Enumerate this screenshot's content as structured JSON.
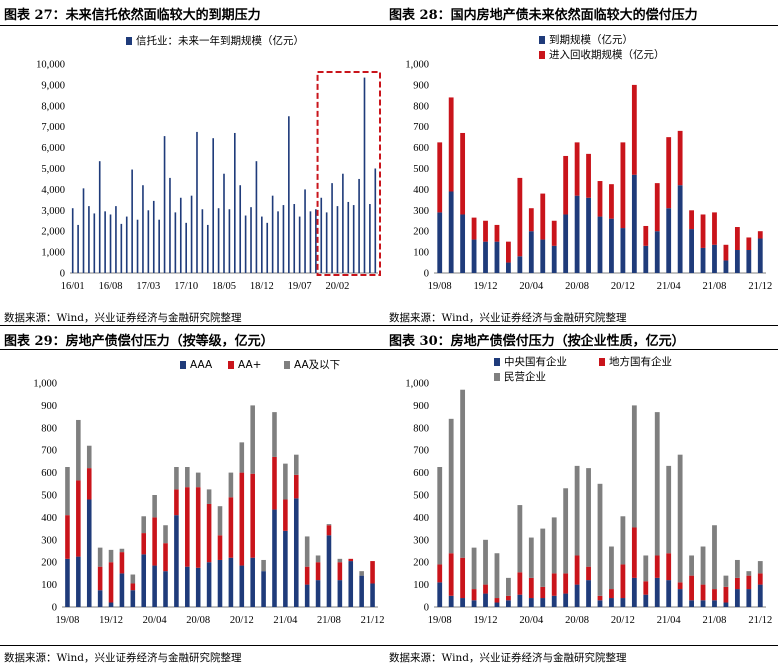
{
  "colors": {
    "navy": "#1f3b7a",
    "red": "#c9141b",
    "gray": "#7f7f7f",
    "highlight": "#c9141b"
  },
  "panels": [
    {
      "title": "图表 27：未来信托依然面临较大的到期压力",
      "source": "数据来源：Wind，兴业证券经济与金融研究院整理"
    },
    {
      "title": "图表 28：国内房地产债未来依然面临较大的偿付压力",
      "source": "数据来源：Wind，兴业证券经济与金融研究院整理"
    },
    {
      "title": "图表 29：房地产债偿付压力（按等级，亿元）",
      "source": "数据来源：Wind，兴业证券经济与金融研究院整理"
    },
    {
      "title": "图表 30：房地产债偿付压力（按企业性质，亿元）",
      "source": "数据来源：Wind，兴业证券经济与金融研究院整理"
    }
  ],
  "chart_data": [
    {
      "type": "bar",
      "ylim": [
        0,
        10000
      ],
      "yticks": [
        "0",
        "1,000",
        "2,000",
        "3,000",
        "4,000",
        "5,000",
        "6,000",
        "7,000",
        "8,000",
        "9,000",
        "10,000"
      ],
      "xticks": [
        {
          "i": 0,
          "label": "16/01"
        },
        {
          "i": 7,
          "label": "16/08"
        },
        {
          "i": 14,
          "label": "17/03"
        },
        {
          "i": 21,
          "label": "17/10"
        },
        {
          "i": 28,
          "label": "18/05"
        },
        {
          "i": 35,
          "label": "18/12"
        },
        {
          "i": 42,
          "label": "19/07"
        },
        {
          "i": 49,
          "label": "20/02"
        }
      ],
      "series": [
        {
          "name": "信托业：未来一年到期规模（亿元）",
          "color": "navy",
          "values": [
            3100,
            2300,
            4050,
            3200,
            2850,
            5350,
            2950,
            2800,
            3200,
            2350,
            2700,
            4950,
            2550,
            4200,
            3000,
            3450,
            2550,
            6550,
            4550,
            2900,
            3600,
            2400,
            3700,
            6750,
            3050,
            2300,
            6450,
            3100,
            4750,
            3050,
            6700,
            4200,
            2750,
            3150,
            5350,
            2700,
            2400,
            3700,
            2950,
            3250,
            7500,
            3300,
            2700,
            4000,
            2950,
            3050,
            3600,
            2900,
            4300,
            3200,
            4750,
            3400,
            3250,
            4500,
            9350,
            3300,
            5000
          ]
        }
      ],
      "highlight_box": {
        "from_index": 46,
        "to_index": 56
      }
    },
    {
      "type": "bar",
      "stacked": true,
      "ylim": [
        0,
        1000
      ],
      "yticks": [
        "0",
        "100",
        "200",
        "300",
        "400",
        "500",
        "600",
        "700",
        "800",
        "900",
        "1,000"
      ],
      "xticks": [
        {
          "i": 0,
          "label": "19/08"
        },
        {
          "i": 4,
          "label": "19/12"
        },
        {
          "i": 8,
          "label": "20/04"
        },
        {
          "i": 12,
          "label": "20/08"
        },
        {
          "i": 16,
          "label": "20/12"
        },
        {
          "i": 20,
          "label": "21/04"
        },
        {
          "i": 24,
          "label": "21/08"
        },
        {
          "i": 28,
          "label": "21/12"
        }
      ],
      "series": [
        {
          "name": "到期规模（亿元）",
          "color": "navy",
          "values": [
            290,
            390,
            280,
            160,
            150,
            150,
            50,
            80,
            200,
            160,
            130,
            280,
            370,
            360,
            270,
            260,
            215,
            470,
            130,
            200,
            310,
            420,
            210,
            120,
            135,
            60,
            110,
            110,
            165
          ]
        },
        {
          "name": "进入回收期规模（亿元）",
          "color": "red",
          "values": [
            335,
            450,
            390,
            105,
            100,
            80,
            100,
            375,
            110,
            220,
            120,
            280,
            255,
            210,
            170,
            165,
            410,
            430,
            95,
            230,
            340,
            260,
            90,
            160,
            155,
            75,
            110,
            60,
            35
          ]
        }
      ]
    },
    {
      "type": "bar",
      "stacked": true,
      "ylim": [
        0,
        1000
      ],
      "yticks": [
        "0",
        "100",
        "200",
        "300",
        "400",
        "500",
        "600",
        "700",
        "800",
        "900",
        "1,000"
      ],
      "xticks": [
        {
          "i": 0,
          "label": "19/08"
        },
        {
          "i": 4,
          "label": "19/12"
        },
        {
          "i": 8,
          "label": "20/04"
        },
        {
          "i": 12,
          "label": "20/08"
        },
        {
          "i": 16,
          "label": "20/12"
        },
        {
          "i": 20,
          "label": "21/04"
        },
        {
          "i": 24,
          "label": "21/08"
        },
        {
          "i": 28,
          "label": "21/12"
        }
      ],
      "series": [
        {
          "name": "AAA",
          "color": "navy",
          "values": [
            215,
            225,
            480,
            75,
            20,
            150,
            75,
            235,
            185,
            160,
            410,
            180,
            175,
            200,
            210,
            220,
            185,
            220,
            160,
            435,
            340,
            485,
            100,
            120,
            320,
            120,
            205,
            140,
            105
          ]
        },
        {
          "name": "AA+",
          "color": "red",
          "values": [
            195,
            340,
            140,
            105,
            180,
            95,
            30,
            95,
            215,
            125,
            115,
            355,
            360,
            260,
            110,
            270,
            415,
            375,
            0,
            235,
            140,
            105,
            80,
            80,
            45,
            80,
            10,
            0,
            100
          ]
        },
        {
          "name": "AA及以下",
          "color": "gray",
          "values": [
            215,
            270,
            100,
            85,
            55,
            15,
            40,
            75,
            100,
            80,
            100,
            90,
            65,
            65,
            130,
            110,
            135,
            305,
            50,
            200,
            160,
            90,
            135,
            30,
            5,
            15,
            0,
            20,
            0
          ]
        }
      ]
    },
    {
      "type": "bar",
      "stacked": true,
      "ylim": [
        0,
        1000
      ],
      "yticks": [
        "0",
        "100",
        "200",
        "300",
        "400",
        "500",
        "600",
        "700",
        "800",
        "900",
        "1,000"
      ],
      "xticks": [
        {
          "i": 0,
          "label": "19/08"
        },
        {
          "i": 4,
          "label": "19/12"
        },
        {
          "i": 8,
          "label": "20/04"
        },
        {
          "i": 12,
          "label": "20/08"
        },
        {
          "i": 16,
          "label": "20/12"
        },
        {
          "i": 20,
          "label": "21/04"
        },
        {
          "i": 24,
          "label": "21/08"
        },
        {
          "i": 28,
          "label": "21/12"
        }
      ],
      "series": [
        {
          "name": "中央国有企业",
          "color": "navy",
          "values": [
            110,
            50,
            40,
            30,
            60,
            20,
            30,
            55,
            40,
            40,
            50,
            60,
            100,
            120,
            30,
            40,
            40,
            130,
            55,
            130,
            120,
            80,
            30,
            30,
            30,
            20,
            80,
            80,
            100
          ]
        },
        {
          "name": "地方国有企业",
          "color": "red",
          "values": [
            80,
            190,
            180,
            50,
            40,
            20,
            20,
            100,
            90,
            50,
            100,
            90,
            130,
            60,
            20,
            40,
            150,
            225,
            60,
            100,
            120,
            30,
            110,
            70,
            50,
            70,
            50,
            60,
            50
          ]
        },
        {
          "name": "民营企业",
          "color": "gray",
          "values": [
            435,
            600,
            750,
            185,
            200,
            200,
            80,
            300,
            180,
            260,
            250,
            380,
            400,
            440,
            500,
            190,
            215,
            545,
            115,
            640,
            390,
            570,
            90,
            170,
            285,
            50,
            80,
            20,
            55
          ]
        }
      ]
    }
  ]
}
